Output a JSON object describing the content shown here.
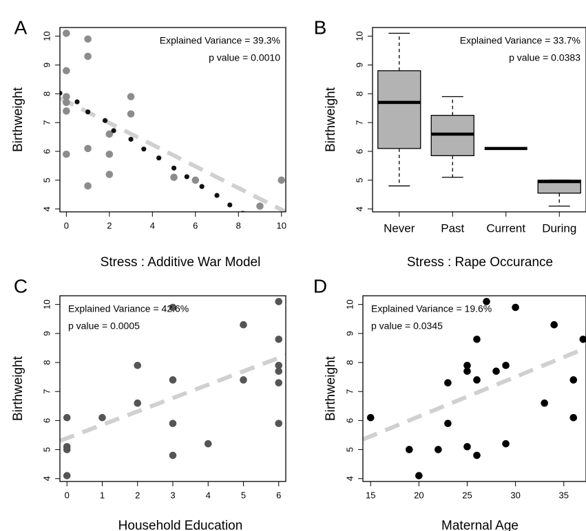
{
  "chart_data": [
    {
      "panel_letter": "A",
      "type": "scatter",
      "xlabel": "Stress : Additive War Model",
      "ylabel": "Birthweight",
      "xlim": [
        -0.3,
        10.2
      ],
      "ylim": [
        3.9,
        10.3
      ],
      "xticks": [
        0,
        2,
        4,
        6,
        8,
        10
      ],
      "yticks": [
        4,
        5,
        6,
        7,
        8,
        9,
        10
      ],
      "annotations": [
        "Explained Variance = 39.3%",
        "p value = 0.0010"
      ],
      "annotation_align": "right",
      "point_color": "#8c8c8c",
      "points": [
        {
          "x": 0,
          "y": 10.1
        },
        {
          "x": 0,
          "y": 8.8
        },
        {
          "x": 0,
          "y": 7.9
        },
        {
          "x": 0,
          "y": 7.7
        },
        {
          "x": 0,
          "y": 7.4
        },
        {
          "x": 0,
          "y": 5.9
        },
        {
          "x": 1,
          "y": 9.9
        },
        {
          "x": 1,
          "y": 9.3
        },
        {
          "x": 1,
          "y": 6.1
        },
        {
          "x": 1,
          "y": 4.8
        },
        {
          "x": 2,
          "y": 6.6
        },
        {
          "x": 2,
          "y": 5.9
        },
        {
          "x": 2,
          "y": 5.2
        },
        {
          "x": 3,
          "y": 7.9
        },
        {
          "x": 3,
          "y": 7.3
        },
        {
          "x": 5,
          "y": 5.1
        },
        {
          "x": 6,
          "y": 5.0
        },
        {
          "x": 9,
          "y": 4.1
        },
        {
          "x": 10,
          "y": 5.0
        }
      ],
      "fitted_points": [
        {
          "x": -0.3,
          "y": 8.02
        },
        {
          "x": 0.5,
          "y": 7.72
        },
        {
          "x": 1.0,
          "y": 7.37
        },
        {
          "x": 1.8,
          "y": 7.07
        },
        {
          "x": 2.2,
          "y": 6.72
        },
        {
          "x": 3.0,
          "y": 6.42
        },
        {
          "x": 3.6,
          "y": 6.08
        },
        {
          "x": 4.3,
          "y": 5.77
        },
        {
          "x": 5.0,
          "y": 5.42
        },
        {
          "x": 5.6,
          "y": 5.12
        },
        {
          "x": 6.3,
          "y": 4.78
        },
        {
          "x": 7.0,
          "y": 4.47
        },
        {
          "x": 7.6,
          "y": 4.14
        },
        {
          "x": 8.2,
          "y": 3.85
        }
      ],
      "trend": {
        "x": [
          -0.3,
          10.2
        ],
        "y": [
          7.85,
          3.9
        ]
      }
    },
    {
      "panel_letter": "B",
      "type": "box",
      "xlabel": "Stress : Rape Occurance",
      "ylabel": "Birthweight",
      "ylim": [
        3.9,
        10.3
      ],
      "yticks": [
        4,
        5,
        6,
        7,
        8,
        9,
        10
      ],
      "annotations": [
        "Explained Variance = 33.7%",
        "p value = 0.0383"
      ],
      "annotation_align": "right",
      "box_fill": "#b3b3b3",
      "categories": [
        "Never",
        "Past",
        "Current",
        "During"
      ],
      "boxes": [
        {
          "whisker_low": 4.8,
          "q1": 6.1,
          "median": 7.7,
          "q3": 8.8,
          "whisker_high": 10.1
        },
        {
          "whisker_low": 5.1,
          "q1": 5.85,
          "median": 6.6,
          "q3": 7.25,
          "whisker_high": 7.9
        },
        {
          "whisker_low": 6.1,
          "q1": 6.1,
          "median": 6.1,
          "q3": 6.1,
          "whisker_high": 6.1
        },
        {
          "whisker_low": 4.1,
          "q1": 4.55,
          "median": 4.95,
          "q3": 5.0,
          "whisker_high": 5.0
        }
      ]
    },
    {
      "panel_letter": "C",
      "type": "scatter",
      "xlabel": "Household Education",
      "ylabel": "Birthweight",
      "xlim": [
        -0.2,
        6.2
      ],
      "ylim": [
        3.9,
        10.3
      ],
      "xticks": [
        0,
        1,
        2,
        3,
        4,
        5,
        6
      ],
      "yticks": [
        4,
        5,
        6,
        7,
        8,
        9,
        10
      ],
      "annotations": [
        "Explained Variance = 42.6%",
        "p value = 0.0005"
      ],
      "annotation_align": "left",
      "point_color": "#555555",
      "points": [
        {
          "x": 0,
          "y": 6.1
        },
        {
          "x": 0,
          "y": 5.1
        },
        {
          "x": 0,
          "y": 5.0
        },
        {
          "x": 0,
          "y": 4.1
        },
        {
          "x": 1,
          "y": 6.1
        },
        {
          "x": 2,
          "y": 7.9
        },
        {
          "x": 2,
          "y": 6.6
        },
        {
          "x": 3,
          "y": 9.9
        },
        {
          "x": 3,
          "y": 7.4
        },
        {
          "x": 3,
          "y": 5.9
        },
        {
          "x": 3,
          "y": 4.8
        },
        {
          "x": 4,
          "y": 5.2
        },
        {
          "x": 5,
          "y": 9.3
        },
        {
          "x": 5,
          "y": 7.4
        },
        {
          "x": 6,
          "y": 10.1
        },
        {
          "x": 6,
          "y": 8.8
        },
        {
          "x": 6,
          "y": 7.9
        },
        {
          "x": 6,
          "y": 7.7
        },
        {
          "x": 6,
          "y": 7.3
        },
        {
          "x": 6,
          "y": 5.9
        }
      ],
      "trend": {
        "x": [
          -0.2,
          6.2
        ],
        "y": [
          5.3,
          8.25
        ]
      }
    },
    {
      "panel_letter": "D",
      "type": "scatter",
      "xlabel": "Maternal Age",
      "ylabel": "Birthweight",
      "xlim": [
        14.2,
        37.3
      ],
      "ylim": [
        3.9,
        10.3
      ],
      "xticks": [
        15,
        20,
        25,
        30,
        35
      ],
      "yticks": [
        4,
        5,
        6,
        7,
        8,
        9,
        10
      ],
      "annotations": [
        "Explained Variance = 19.6%",
        "p value = 0.0345"
      ],
      "annotation_align": "left",
      "point_color": "#000000",
      "points": [
        {
          "x": 15,
          "y": 6.1
        },
        {
          "x": 19,
          "y": 5.0
        },
        {
          "x": 20,
          "y": 4.1
        },
        {
          "x": 22,
          "y": 5.0
        },
        {
          "x": 23,
          "y": 7.3
        },
        {
          "x": 23,
          "y": 5.9
        },
        {
          "x": 25,
          "y": 7.9
        },
        {
          "x": 25,
          "y": 7.7
        },
        {
          "x": 25,
          "y": 5.1
        },
        {
          "x": 26,
          "y": 8.8
        },
        {
          "x": 26,
          "y": 7.4
        },
        {
          "x": 26,
          "y": 4.8
        },
        {
          "x": 27,
          "y": 10.1
        },
        {
          "x": 28,
          "y": 7.7
        },
        {
          "x": 29,
          "y": 7.9
        },
        {
          "x": 29,
          "y": 5.2
        },
        {
          "x": 30,
          "y": 9.9
        },
        {
          "x": 33,
          "y": 6.6
        },
        {
          "x": 34,
          "y": 9.3
        },
        {
          "x": 36,
          "y": 7.4
        },
        {
          "x": 36,
          "y": 6.1
        },
        {
          "x": 37,
          "y": 8.8
        }
      ],
      "trend": {
        "x": [
          14.2,
          37.3
        ],
        "y": [
          5.35,
          8.5
        ]
      }
    }
  ]
}
